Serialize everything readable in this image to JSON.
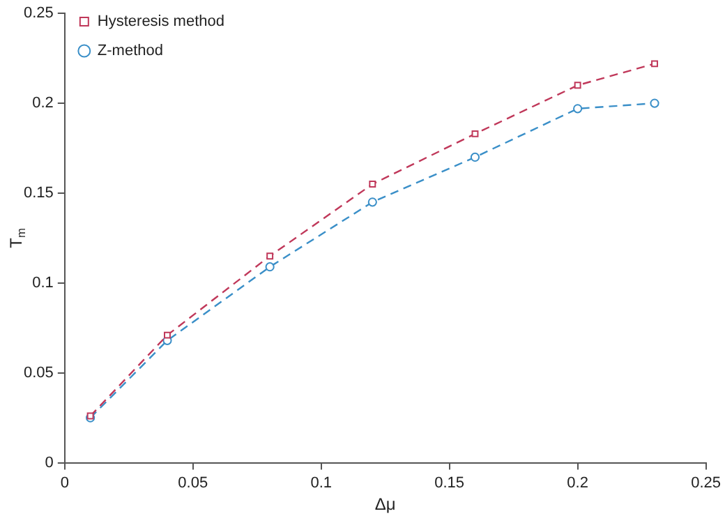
{
  "chart_data": {
    "type": "line",
    "xlabel": "Δμ",
    "ylabel": "T$_{m}$",
    "x": [
      0.01,
      0.04,
      0.08,
      0.12,
      0.16,
      0.2,
      0.23
    ],
    "series": [
      {
        "name": "Z-method",
        "color": "#3a8fc8",
        "marker": "circle",
        "line_style": "dashed",
        "values": [
          0.025,
          0.068,
          0.109,
          0.145,
          0.17,
          0.197,
          0.2
        ]
      },
      {
        "name": "Hysteresis method",
        "color": "#c0385a",
        "marker": "square",
        "line_style": "dashed",
        "values": [
          0.026,
          0.071,
          0.115,
          0.155,
          0.183,
          0.21,
          0.222
        ]
      }
    ],
    "xlim": [
      0,
      0.25
    ],
    "xticks": [
      0,
      0.05,
      0.1,
      0.15,
      0.2,
      0.25
    ],
    "ylim": [
      0,
      0.25
    ],
    "yticks": [
      0,
      0.05,
      0.1,
      0.15,
      0.2,
      0.25
    ],
    "grid": false,
    "legend": "top left"
  }
}
